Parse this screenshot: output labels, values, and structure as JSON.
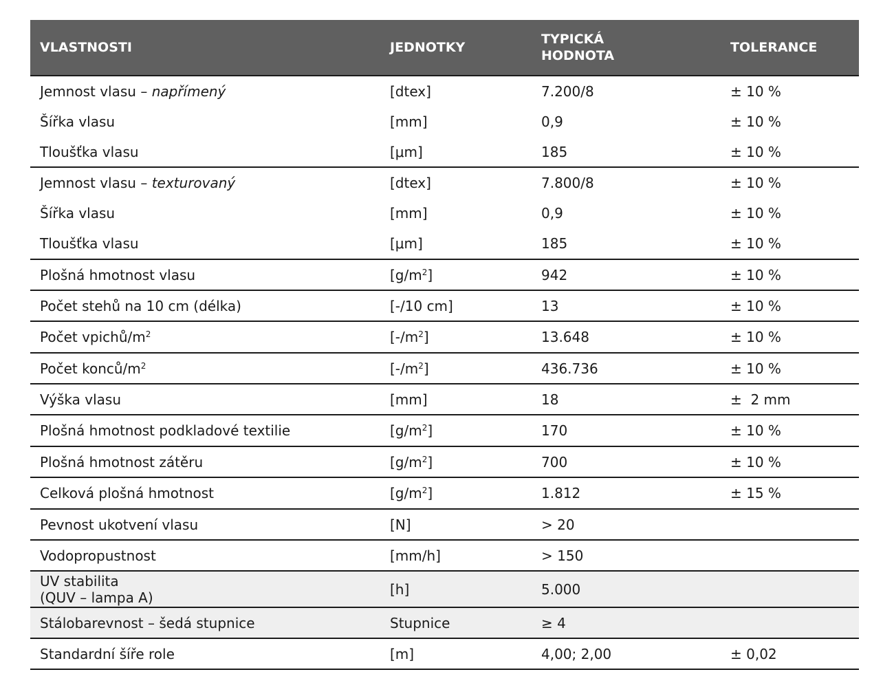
{
  "header": {
    "col1": "VLASTNOSTI",
    "col2": "JEDNOTKY",
    "col3_line1": "TYPICKÁ",
    "col3_line2": "HODNOTA",
    "col4": "TOLERANCE"
  },
  "rows": [
    {
      "prop": "Jemnost vlasu – ",
      "prop_italic": "napřímený",
      "unit": "[dtex]",
      "value": "7.200/8",
      "tol": "± 10 %"
    },
    {
      "prop": "Šířka vlasu",
      "unit": "[mm]",
      "value": "0,9",
      "tol": "± 10 %"
    },
    {
      "prop": "Tloušťka vlasu",
      "unit": "[μm]",
      "value": "185",
      "tol": "± 10 %"
    },
    {
      "prop": "Jemnost vlasu – ",
      "prop_italic": "texturovaný",
      "unit": "[dtex]",
      "value": "7.800/8",
      "tol": "± 10 %"
    },
    {
      "prop": "Šířka vlasu",
      "unit": "[mm]",
      "value": "0,9",
      "tol": "± 10 %"
    },
    {
      "prop": "Tloušťka vlasu",
      "unit": "[μm]",
      "value": "185",
      "tol": "± 10 %"
    },
    {
      "prop": "Plošná hmotnost vlasu",
      "unit": "[g/m",
      "unit_sup": "2",
      "unit_tail": "]",
      "value": "942",
      "tol": "± 10 %"
    },
    {
      "prop": "Počet stehů na 10 cm (délka)",
      "unit": "[-/10 cm]",
      "value": "13",
      "tol": "± 10 %"
    },
    {
      "prop": "Počet vpichů/m",
      "prop_sup": "2",
      "unit": "[-/m",
      "unit_sup": "2",
      "unit_tail": "]",
      "value": "13.648",
      "tol": "± 10 %"
    },
    {
      "prop": "Počet konců/m",
      "prop_sup": "2",
      "unit": "[-/m",
      "unit_sup": "2",
      "unit_tail": "]",
      "value": "436.736",
      "tol": "± 10 %"
    },
    {
      "prop": "Výška vlasu",
      "unit": "[mm]",
      "value": "18",
      "tol": "±  2 mm"
    },
    {
      "prop": "Plošná hmotnost podkladové textilie",
      "unit": "[g/m",
      "unit_sup": "2",
      "unit_tail": "]",
      "value": "170",
      "tol": "± 10 %"
    },
    {
      "prop": "Plošná hmotnost zátěru",
      "unit": "[g/m",
      "unit_sup": "2",
      "unit_tail": "]",
      "value": "700",
      "tol": "± 10 %"
    },
    {
      "prop": "Celková plošná hmotnost",
      "unit": "[g/m",
      "unit_sup": "2",
      "unit_tail": "]",
      "value": "1.812",
      "tol": "± 15 %"
    },
    {
      "prop": "Pevnost ukotvení vlasu",
      "unit": "[N]",
      "value": "> 20",
      "tol": ""
    },
    {
      "prop": "Vodopropustnost",
      "unit": "[mm/h]",
      "value": "> 150",
      "tol": ""
    },
    {
      "prop": "UV stabilita",
      "prop_line2": "(QUV – lampa A)",
      "unit": "[h]",
      "value": "5.000",
      "tol": ""
    },
    {
      "prop": "Stálobarevnost – šedá stupnice",
      "unit": "Stupnice",
      "value": "≥ 4",
      "tol": ""
    },
    {
      "prop": "Standardní šíře role",
      "unit": "[m]",
      "value": "4,00; 2,00",
      "tol": "± 0,02"
    }
  ]
}
